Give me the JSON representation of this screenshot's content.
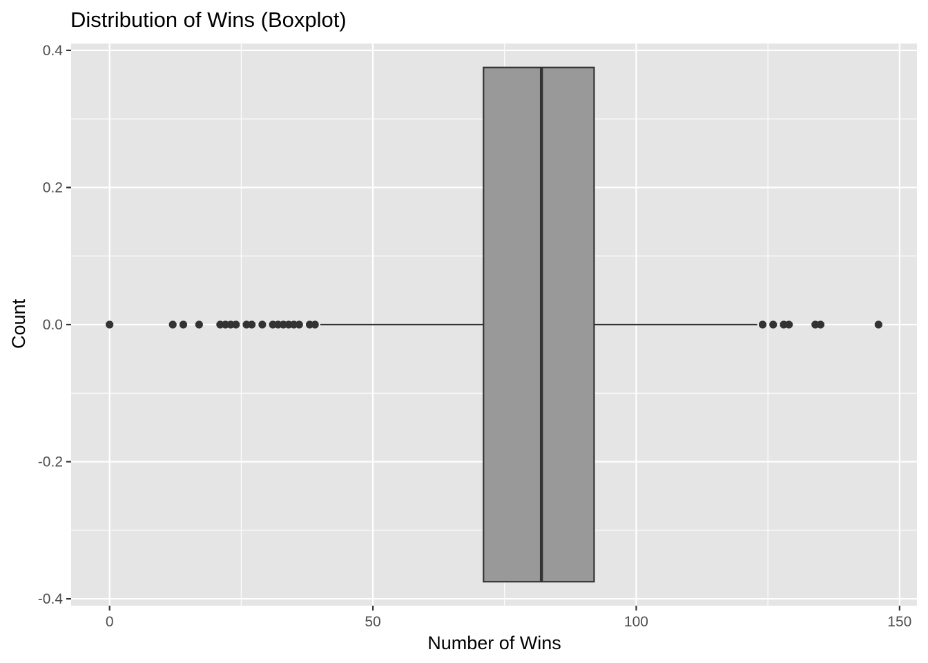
{
  "chart_data": {
    "type": "boxplot",
    "title": "Distribution of Wins (Boxplot)",
    "xlabel": "Number of Wins",
    "ylabel": "Count",
    "xlim": [
      -7.3,
      153.3
    ],
    "ylim": [
      -0.41,
      0.41
    ],
    "x_ticks": [
      0,
      50,
      100,
      150
    ],
    "x_tick_labels": [
      "0",
      "50",
      "100",
      "150"
    ],
    "y_ticks": [
      0.4,
      0.2,
      0.0,
      -0.2,
      -0.4
    ],
    "y_tick_labels": [
      "0.4",
      "0.2",
      "0.0",
      "-0.2",
      "-0.4"
    ],
    "grid": true,
    "box": {
      "whisker_low": 40,
      "q1": 71,
      "median": 82,
      "q3": 92,
      "whisker_high": 123,
      "width": 0.75
    },
    "outliers": [
      0,
      12,
      14,
      17,
      21,
      22,
      23,
      24,
      26,
      27,
      29,
      31,
      32,
      33,
      34,
      35,
      36,
      38,
      39,
      124,
      126,
      128,
      129,
      134,
      135,
      146
    ],
    "colors": {
      "panel": "#e5e5e5",
      "grid": "#ffffff",
      "box_fill": "#999999",
      "box_line": "#333333",
      "point": "#333333"
    }
  }
}
